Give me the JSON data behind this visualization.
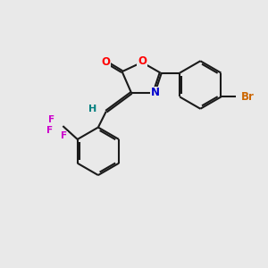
{
  "bg_color": "#e9e9e9",
  "bond_color": "#1a1a1a",
  "bond_width": 1.5,
  "atom_colors": {
    "O": "#ff0000",
    "N": "#0000cd",
    "Br": "#cc6600",
    "F": "#cc00cc",
    "H": "#008080",
    "C": "#1a1a1a"
  },
  "font_size": 8.5,
  "title": ""
}
